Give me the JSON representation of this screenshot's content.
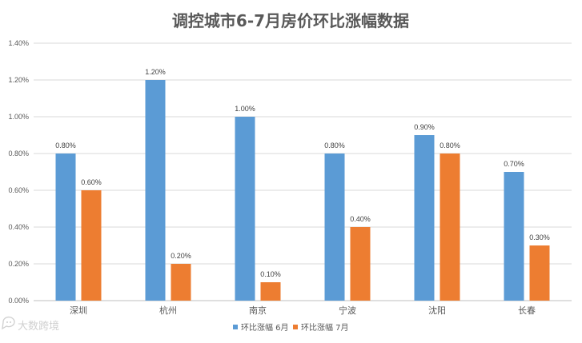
{
  "chart_data": {
    "type": "bar",
    "title": "调控城市6-7月房价环比涨幅数据",
    "categories": [
      "深圳",
      "杭州",
      "南京",
      "宁波",
      "沈阳",
      "长春"
    ],
    "series": [
      {
        "name": "环比涨幅 6月",
        "values": [
          0.8,
          1.2,
          1.0,
          0.8,
          0.9,
          0.7
        ],
        "labels": [
          "0.80%",
          "1.20%",
          "1.00%",
          "0.80%",
          "0.90%",
          "0.70%"
        ],
        "color": "#5B9BD5"
      },
      {
        "name": "环比涨幅 7月",
        "values": [
          0.6,
          0.2,
          0.1,
          0.4,
          0.8,
          0.3
        ],
        "labels": [
          "0.60%",
          "0.20%",
          "0.10%",
          "0.40%",
          "0.80%",
          "0.30%"
        ],
        "color": "#ED7D31"
      }
    ],
    "yticks": [
      "0.00%",
      "0.20%",
      "0.40%",
      "0.60%",
      "0.80%",
      "1.00%",
      "1.20%",
      "1.40%"
    ],
    "ylim": [
      0,
      1.4
    ],
    "grid": true,
    "legend": "bottom-center"
  },
  "watermark": {
    "text": "大数跨境",
    "icon": "chat-bubble-icon"
  }
}
